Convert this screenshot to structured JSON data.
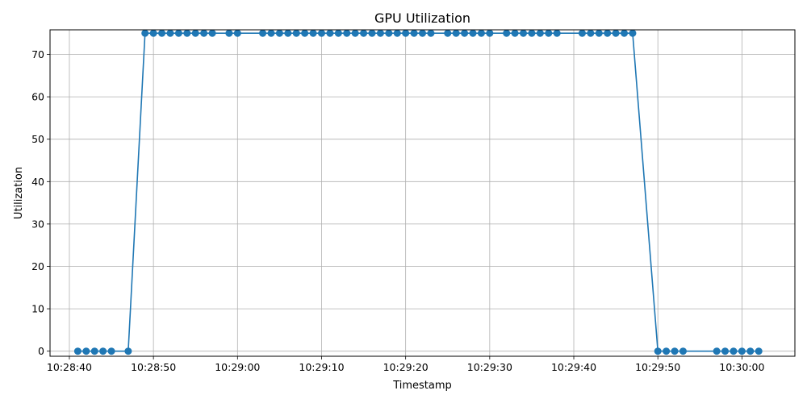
{
  "chart_data": {
    "type": "line",
    "title": "GPU Utilization",
    "xlabel": "Timestamp",
    "ylabel": "Utilization",
    "x_tick_labels": [
      "10:28:40",
      "10:28:50",
      "10:29:00",
      "10:29:10",
      "10:29:20",
      "10:29:30",
      "10:29:40",
      "10:29:50",
      "10:30:00"
    ],
    "y_ticks": [
      0,
      10,
      20,
      30,
      40,
      50,
      60,
      70
    ],
    "xlim": [
      "10:28:37.7",
      "10:30:06.3"
    ],
    "ylim": [
      -1.2,
      75.8
    ],
    "grid": true,
    "marker": "circle",
    "color": "#1f77b4",
    "series": [
      {
        "x": [
          "10:28:41",
          "10:28:42",
          "10:28:43",
          "10:28:44",
          "10:28:45",
          "10:28:47",
          "10:28:49",
          "10:28:50",
          "10:28:51",
          "10:28:52",
          "10:28:53",
          "10:28:54",
          "10:28:55",
          "10:28:56",
          "10:28:57",
          "10:28:59",
          "10:29:00",
          "10:29:03",
          "10:29:04",
          "10:29:05",
          "10:29:06",
          "10:29:07",
          "10:29:08",
          "10:29:09",
          "10:29:10",
          "10:29:11",
          "10:29:12",
          "10:29:13",
          "10:29:14",
          "10:29:15",
          "10:29:16",
          "10:29:17",
          "10:29:18",
          "10:29:19",
          "10:29:20",
          "10:29:21",
          "10:29:22",
          "10:29:23",
          "10:29:25",
          "10:29:26",
          "10:29:27",
          "10:29:28",
          "10:29:29",
          "10:29:30",
          "10:29:32",
          "10:29:33",
          "10:29:34",
          "10:29:35",
          "10:29:36",
          "10:29:37",
          "10:29:38",
          "10:29:41",
          "10:29:42",
          "10:29:43",
          "10:29:44",
          "10:29:45",
          "10:29:46",
          "10:29:47",
          "10:29:50",
          "10:29:51",
          "10:29:52",
          "10:29:53",
          "10:29:57",
          "10:29:58",
          "10:29:59",
          "10:30:00",
          "10:30:01",
          "10:30:02"
        ],
        "values": [
          0,
          0,
          0,
          0,
          0,
          0,
          75,
          75,
          75,
          75,
          75,
          75,
          75,
          75,
          75,
          75,
          75,
          75,
          75,
          75,
          75,
          75,
          75,
          75,
          75,
          75,
          75,
          75,
          75,
          75,
          75,
          75,
          75,
          75,
          75,
          75,
          75,
          75,
          75,
          75,
          75,
          75,
          75,
          75,
          75,
          75,
          75,
          75,
          75,
          75,
          75,
          75,
          75,
          75,
          75,
          75,
          75,
          75,
          0,
          0,
          0,
          0,
          0,
          0,
          0,
          0,
          0,
          0
        ]
      }
    ]
  }
}
